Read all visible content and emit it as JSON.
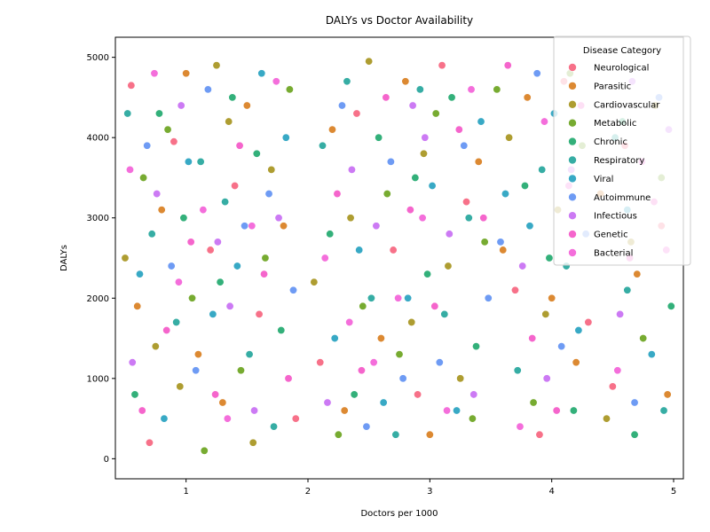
{
  "chart_data": {
    "type": "scatter",
    "title": "DALYs vs Doctor Availability",
    "xlabel": "Doctors per 1000",
    "ylabel": "DALYs",
    "xlim": [
      0.42,
      5.08
    ],
    "ylim": [
      -250,
      5250
    ],
    "xticks": [
      1,
      2,
      3,
      4,
      5
    ],
    "yticks": [
      0,
      1000,
      2000,
      3000,
      4000,
      5000
    ],
    "grid": false,
    "legend": {
      "title": "Disease Category",
      "placement": "top-right"
    },
    "series": [
      {
        "name": "Neurological",
        "color": "#f77189",
        "points": [
          [
            0.55,
            4650
          ],
          [
            0.9,
            3950
          ],
          [
            1.2,
            2600
          ],
          [
            1.6,
            1800
          ],
          [
            2.1,
            1200
          ],
          [
            2.4,
            4300
          ],
          [
            2.9,
            800
          ],
          [
            3.3,
            3200
          ],
          [
            3.7,
            2100
          ],
          [
            4.1,
            4700
          ],
          [
            4.5,
            900
          ],
          [
            4.9,
            2900
          ],
          [
            0.7,
            200
          ],
          [
            1.4,
            3400
          ],
          [
            2.7,
            2600
          ],
          [
            3.9,
            300
          ],
          [
            4.6,
            3900
          ],
          [
            1.9,
            500
          ],
          [
            3.1,
            4900
          ],
          [
            4.3,
            1700
          ]
        ]
      },
      {
        "name": "Parasitic",
        "color": "#dc8932",
        "points": [
          [
            0.6,
            1900
          ],
          [
            1.0,
            4800
          ],
          [
            1.3,
            700
          ],
          [
            1.8,
            2900
          ],
          [
            2.2,
            4100
          ],
          [
            2.6,
            1500
          ],
          [
            3.0,
            300
          ],
          [
            3.4,
            3700
          ],
          [
            3.8,
            4500
          ],
          [
            4.2,
            1200
          ],
          [
            4.7,
            2300
          ],
          [
            0.8,
            3100
          ],
          [
            1.5,
            4400
          ],
          [
            2.3,
            600
          ],
          [
            3.6,
            2600
          ],
          [
            4.4,
            3300
          ],
          [
            4.95,
            800
          ],
          [
            1.1,
            1300
          ],
          [
            2.8,
            4700
          ],
          [
            4.0,
            2000
          ]
        ]
      },
      {
        "name": "Cardiovascular",
        "color": "#ae9d31",
        "points": [
          [
            0.5,
            2500
          ],
          [
            0.95,
            900
          ],
          [
            1.35,
            4200
          ],
          [
            1.7,
            3600
          ],
          [
            2.05,
            2200
          ],
          [
            2.5,
            4950
          ],
          [
            2.85,
            1700
          ],
          [
            3.25,
            1000
          ],
          [
            3.65,
            4000
          ],
          [
            4.05,
            3100
          ],
          [
            4.45,
            500
          ],
          [
            4.85,
            4400
          ],
          [
            0.75,
            1400
          ],
          [
            1.55,
            200
          ],
          [
            2.35,
            3000
          ],
          [
            3.15,
            2400
          ],
          [
            3.95,
            1800
          ],
          [
            4.65,
            2700
          ],
          [
            1.25,
            4900
          ],
          [
            2.95,
            3800
          ]
        ]
      },
      {
        "name": "Metabolic",
        "color": "#77ab31",
        "points": [
          [
            0.65,
            3500
          ],
          [
            1.05,
            2000
          ],
          [
            1.45,
            1100
          ],
          [
            1.85,
            4600
          ],
          [
            2.25,
            300
          ],
          [
            2.65,
            3300
          ],
          [
            3.05,
            4300
          ],
          [
            3.45,
            2700
          ],
          [
            3.85,
            700
          ],
          [
            4.25,
            3900
          ],
          [
            4.75,
            1500
          ],
          [
            0.85,
            4100
          ],
          [
            1.65,
            2500
          ],
          [
            2.45,
            1900
          ],
          [
            3.35,
            500
          ],
          [
            4.15,
            4800
          ],
          [
            4.9,
            3500
          ],
          [
            1.15,
            100
          ],
          [
            2.75,
            1300
          ],
          [
            3.55,
            4600
          ]
        ]
      },
      {
        "name": "Chronic",
        "color": "#33b07a",
        "points": [
          [
            0.58,
            800
          ],
          [
            0.98,
            3000
          ],
          [
            1.38,
            4500
          ],
          [
            1.78,
            1600
          ],
          [
            2.18,
            2800
          ],
          [
            2.58,
            4000
          ],
          [
            2.98,
            2300
          ],
          [
            3.38,
            1400
          ],
          [
            3.78,
            3400
          ],
          [
            4.18,
            600
          ],
          [
            4.58,
            4200
          ],
          [
            4.98,
            1900
          ],
          [
            0.78,
            4300
          ],
          [
            1.58,
            3800
          ],
          [
            2.38,
            800
          ],
          [
            3.18,
            4500
          ],
          [
            3.98,
            2500
          ],
          [
            4.68,
            300
          ],
          [
            1.28,
            2200
          ],
          [
            2.88,
            3500
          ]
        ]
      },
      {
        "name": "Respiratory",
        "color": "#36ada4",
        "points": [
          [
            0.52,
            4300
          ],
          [
            0.92,
            1700
          ],
          [
            1.32,
            3200
          ],
          [
            1.72,
            400
          ],
          [
            2.12,
            3900
          ],
          [
            2.52,
            2000
          ],
          [
            2.92,
            4600
          ],
          [
            3.32,
            3000
          ],
          [
            3.72,
            1100
          ],
          [
            4.12,
            2400
          ],
          [
            4.52,
            4000
          ],
          [
            4.92,
            600
          ],
          [
            0.72,
            2800
          ],
          [
            1.52,
            1300
          ],
          [
            2.32,
            4700
          ],
          [
            3.12,
            1800
          ],
          [
            3.92,
            3600
          ],
          [
            4.62,
            2100
          ],
          [
            1.12,
            3700
          ],
          [
            2.72,
            300
          ]
        ]
      },
      {
        "name": "Viral",
        "color": "#38a9c5",
        "points": [
          [
            0.62,
            2300
          ],
          [
            1.02,
            3700
          ],
          [
            1.42,
            2400
          ],
          [
            1.82,
            4000
          ],
          [
            2.22,
            1500
          ],
          [
            2.62,
            700
          ],
          [
            3.02,
            3400
          ],
          [
            3.42,
            4200
          ],
          [
            3.82,
            2900
          ],
          [
            4.22,
            1600
          ],
          [
            4.62,
            3100
          ],
          [
            0.82,
            500
          ],
          [
            1.62,
            4800
          ],
          [
            2.42,
            2600
          ],
          [
            3.22,
            600
          ],
          [
            4.02,
            4300
          ],
          [
            4.82,
            1300
          ],
          [
            1.22,
            1800
          ],
          [
            2.82,
            2000
          ],
          [
            3.62,
            3300
          ]
        ]
      },
      {
        "name": "Autoimmune",
        "color": "#6e9bf4",
        "points": [
          [
            0.68,
            3900
          ],
          [
            1.08,
            1100
          ],
          [
            1.48,
            2900
          ],
          [
            1.88,
            2100
          ],
          [
            2.28,
            4400
          ],
          [
            2.68,
            3700
          ],
          [
            3.08,
            1200
          ],
          [
            3.48,
            2000
          ],
          [
            3.88,
            4800
          ],
          [
            4.28,
            2800
          ],
          [
            4.68,
            700
          ],
          [
            0.88,
            2400
          ],
          [
            1.68,
            3300
          ],
          [
            2.48,
            400
          ],
          [
            3.28,
            3900
          ],
          [
            4.08,
            1400
          ],
          [
            4.88,
            4500
          ],
          [
            1.18,
            4600
          ],
          [
            2.78,
            1000
          ],
          [
            3.58,
            2700
          ]
        ]
      },
      {
        "name": "Infectious",
        "color": "#cc7af4",
        "points": [
          [
            0.56,
            1200
          ],
          [
            0.96,
            4400
          ],
          [
            1.36,
            1900
          ],
          [
            1.76,
            3000
          ],
          [
            2.16,
            700
          ],
          [
            2.56,
            2900
          ],
          [
            2.96,
            4000
          ],
          [
            3.36,
            800
          ],
          [
            3.76,
            2400
          ],
          [
            4.16,
            3600
          ],
          [
            4.56,
            1800
          ],
          [
            4.96,
            4100
          ],
          [
            0.76,
            3300
          ],
          [
            1.56,
            600
          ],
          [
            2.36,
            3600
          ],
          [
            3.16,
            2800
          ],
          [
            3.96,
            1000
          ],
          [
            4.66,
            4700
          ],
          [
            1.26,
            2700
          ],
          [
            2.86,
            4400
          ]
        ]
      },
      {
        "name": "Genetic",
        "color": "#f565cc",
        "points": [
          [
            0.64,
            600
          ],
          [
            1.04,
            2700
          ],
          [
            1.44,
            3900
          ],
          [
            1.84,
            1000
          ],
          [
            2.24,
            3300
          ],
          [
            2.64,
            4500
          ],
          [
            3.04,
            1900
          ],
          [
            3.44,
            3000
          ],
          [
            3.84,
            1500
          ],
          [
            4.24,
            4400
          ],
          [
            4.64,
            2500
          ],
          [
            0.84,
            1600
          ],
          [
            1.64,
            2300
          ],
          [
            2.44,
            1100
          ],
          [
            3.24,
            4100
          ],
          [
            4.04,
            600
          ],
          [
            4.84,
            3200
          ],
          [
            1.24,
            800
          ],
          [
            2.84,
            3100
          ],
          [
            3.64,
            4900
          ]
        ]
      },
      {
        "name": "Bacterial",
        "color": "#f46edb",
        "points": [
          [
            0.54,
            3600
          ],
          [
            0.94,
            2200
          ],
          [
            1.34,
            500
          ],
          [
            1.74,
            4700
          ],
          [
            2.14,
            2500
          ],
          [
            2.54,
            1200
          ],
          [
            2.94,
            3000
          ],
          [
            3.34,
            4600
          ],
          [
            3.74,
            400
          ],
          [
            4.14,
            3400
          ],
          [
            4.54,
            1100
          ],
          [
            4.94,
            2600
          ],
          [
            0.74,
            4800
          ],
          [
            1.54,
            2900
          ],
          [
            2.34,
            1700
          ],
          [
            3.14,
            600
          ],
          [
            3.94,
            4200
          ],
          [
            4.74,
            3700
          ],
          [
            1.14,
            3100
          ],
          [
            2.74,
            2000
          ]
        ]
      }
    ]
  }
}
